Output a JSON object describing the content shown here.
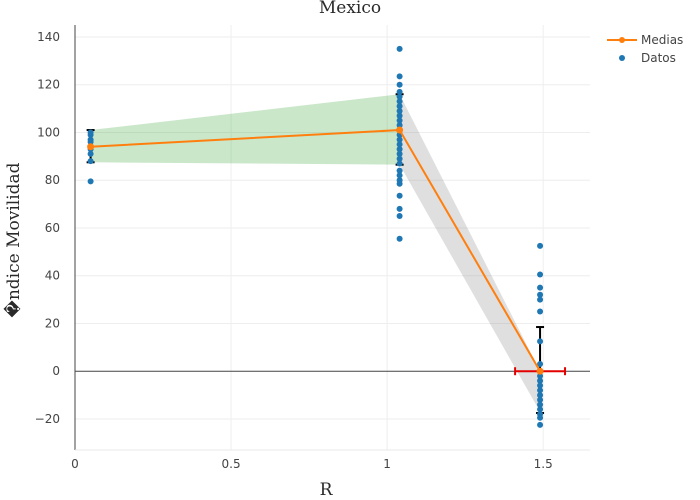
{
  "chart_data": {
    "type": "scatter",
    "title": "Mexico",
    "xlabel": "R",
    "ylabel": "�ndice Movilidad",
    "xlim": [
      0,
      1.65
    ],
    "ylim": [
      -33,
      145
    ],
    "x_ticks": [
      0,
      0.5,
      1,
      1.5
    ],
    "x_tick_labels": [
      "0",
      "0.5",
      "1",
      "1.5"
    ],
    "y_ticks": [
      -20,
      0,
      20,
      40,
      60,
      80,
      100,
      120,
      140
    ],
    "y_tick_labels": [
      "−20",
      "0",
      "20",
      "40",
      "60",
      "80",
      "100",
      "120",
      "140"
    ],
    "grid": true,
    "legend_position": "top-right",
    "colors": {
      "medias": "#ff7f0e",
      "datos": "#1f77b4",
      "band_1": "#2ca02c",
      "band_2": "#7f7f7f",
      "error_bars": "#000000",
      "x_error_bar": "#e30000"
    },
    "series": [
      {
        "name": "Medias",
        "mode": "lines+markers",
        "x": [
          0.05,
          1.04,
          1.49
        ],
        "y": [
          94,
          101,
          0
        ],
        "error_y": [
          [
            87.5,
            101
          ],
          [
            86.5,
            116
          ],
          [
            -17.5,
            18.5
          ]
        ]
      },
      {
        "name": "Datos",
        "mode": "markers",
        "points": [
          [
            0.05,
            79.5
          ],
          [
            0.05,
            88
          ],
          [
            0.05,
            91
          ],
          [
            0.05,
            93
          ],
          [
            0.05,
            94
          ],
          [
            0.05,
            96
          ],
          [
            0.05,
            97
          ],
          [
            0.05,
            99
          ],
          [
            0.05,
            100
          ],
          [
            1.04,
            135
          ],
          [
            1.04,
            123.5
          ],
          [
            1.04,
            120
          ],
          [
            1.04,
            117
          ],
          [
            1.04,
            115
          ],
          [
            1.04,
            113
          ],
          [
            1.04,
            111
          ],
          [
            1.04,
            109
          ],
          [
            1.04,
            107
          ],
          [
            1.04,
            105
          ],
          [
            1.04,
            103
          ],
          [
            1.04,
            101
          ],
          [
            1.04,
            99
          ],
          [
            1.04,
            97
          ],
          [
            1.04,
            95
          ],
          [
            1.04,
            93
          ],
          [
            1.04,
            91
          ],
          [
            1.04,
            89
          ],
          [
            1.04,
            87
          ],
          [
            1.04,
            84
          ],
          [
            1.04,
            82
          ],
          [
            1.04,
            80
          ],
          [
            1.04,
            78.5
          ],
          [
            1.04,
            73.5
          ],
          [
            1.04,
            68
          ],
          [
            1.04,
            65
          ],
          [
            1.04,
            55.5
          ],
          [
            1.49,
            52.5
          ],
          [
            1.49,
            40.5
          ],
          [
            1.49,
            35
          ],
          [
            1.49,
            32
          ],
          [
            1.49,
            30
          ],
          [
            1.49,
            25
          ],
          [
            1.49,
            12.5
          ],
          [
            1.49,
            3
          ],
          [
            1.49,
            0
          ],
          [
            1.49,
            -2
          ],
          [
            1.49,
            -4
          ],
          [
            1.49,
            -6
          ],
          [
            1.49,
            -8
          ],
          [
            1.49,
            -10
          ],
          [
            1.49,
            -12
          ],
          [
            1.49,
            -14
          ],
          [
            1.49,
            -16
          ],
          [
            1.49,
            -18
          ],
          [
            1.49,
            -19.5
          ],
          [
            1.49,
            -22.5
          ]
        ]
      }
    ],
    "bands": [
      {
        "x": [
          0.05,
          1.04
        ],
        "upper": [
          101,
          116
        ],
        "lower": [
          87.5,
          86.5
        ],
        "color": "#2ca02c"
      },
      {
        "x": [
          1.04,
          1.49
        ],
        "upper": [
          116,
          0
        ],
        "lower": [
          86.5,
          -17
        ],
        "color": "#7f7f7f"
      }
    ],
    "x_error_bar": {
      "y": 0,
      "x_center": 1.49,
      "x_low": 1.41,
      "x_high": 1.57
    }
  }
}
